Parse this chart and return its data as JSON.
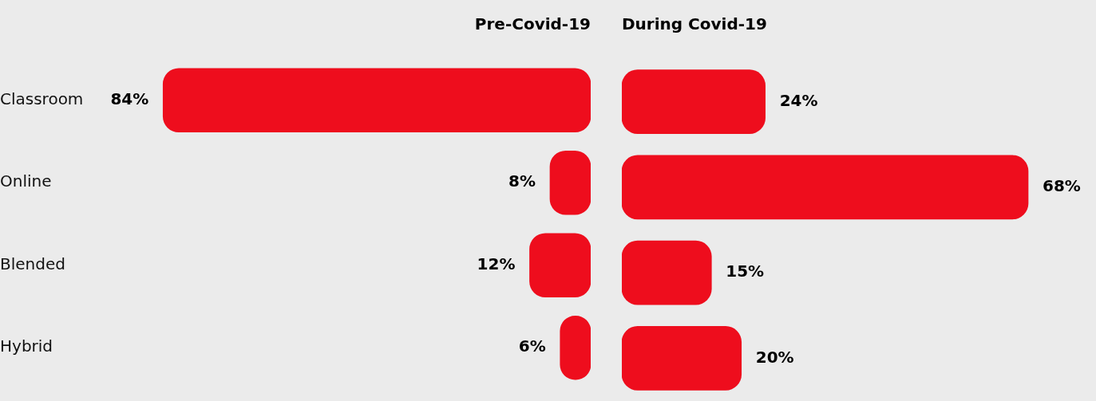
{
  "chart_data": [
    {
      "type": "bar",
      "orientation": "horizontal",
      "title": "Pre-Covid-19",
      "categories": [
        "Classroom",
        "Online",
        "Blended",
        "Hybrid"
      ],
      "values": [
        84,
        8,
        12,
        6
      ],
      "value_labels": [
        "84%",
        "8%",
        "12%",
        "6%"
      ],
      "color": "#ee0d1d",
      "tick_labels": "y"
    },
    {
      "type": "bar",
      "orientation": "horizontal",
      "title": "During Covid-19",
      "categories": [
        null,
        null,
        null,
        null
      ],
      "values": [
        24,
        68,
        15,
        20
      ],
      "value_labels": [
        "24%",
        "68%",
        "15%",
        "20%"
      ],
      "color": "#ee0d1d",
      "tick_labels": false
    }
  ]
}
